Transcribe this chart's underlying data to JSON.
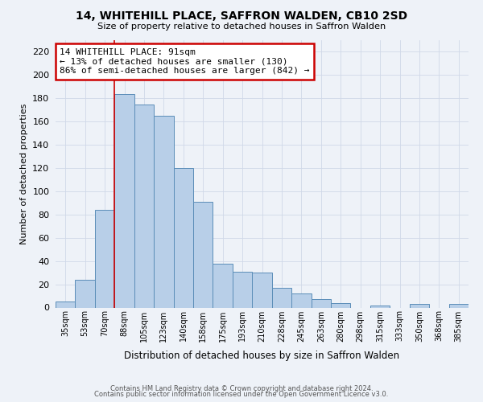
{
  "title": "14, WHITEHILL PLACE, SAFFRON WALDEN, CB10 2SD",
  "subtitle": "Size of property relative to detached houses in Saffron Walden",
  "xlabel": "Distribution of detached houses by size in Saffron Walden",
  "ylabel": "Number of detached properties",
  "bar_labels": [
    "35sqm",
    "53sqm",
    "70sqm",
    "88sqm",
    "105sqm",
    "123sqm",
    "140sqm",
    "158sqm",
    "175sqm",
    "193sqm",
    "210sqm",
    "228sqm",
    "245sqm",
    "263sqm",
    "280sqm",
    "298sqm",
    "315sqm",
    "333sqm",
    "350sqm",
    "368sqm",
    "385sqm"
  ],
  "bar_values": [
    5,
    24,
    84,
    184,
    175,
    165,
    120,
    91,
    38,
    31,
    30,
    17,
    12,
    7,
    4,
    0,
    2,
    0,
    3,
    0,
    3
  ],
  "bar_color": "#b8cfe8",
  "bar_edge_color": "#5b8db8",
  "vline_color": "#cc0000",
  "annotation_text": "14 WHITEHILL PLACE: 91sqm\n← 13% of detached houses are smaller (130)\n86% of semi-detached houses are larger (842) →",
  "annotation_box_color": "#ffffff",
  "annotation_box_edge_color": "#cc0000",
  "ylim": [
    0,
    230
  ],
  "yticks": [
    0,
    20,
    40,
    60,
    80,
    100,
    120,
    140,
    160,
    180,
    200,
    220
  ],
  "grid_color": "#d0d8e8",
  "bg_color": "#eef2f8",
  "footer_line1": "Contains HM Land Registry data © Crown copyright and database right 2024.",
  "footer_line2": "Contains public sector information licensed under the Open Government Licence v3.0."
}
